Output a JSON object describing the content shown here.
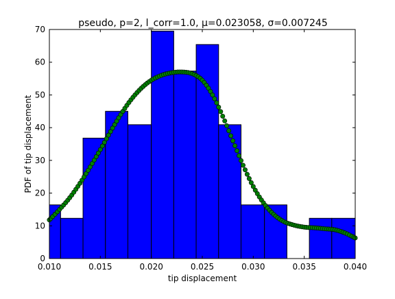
{
  "chart_data": {
    "type": "bar",
    "title": "pseudo, p=2, l_corr=1.0, μ=0.023058, σ=0.007245",
    "xlabel": "tip displacement",
    "ylabel": "PDF of tip displacement",
    "xlim": [
      0.01,
      0.04
    ],
    "ylim": [
      0,
      70
    ],
    "xticks": [
      "0.010",
      "0.015",
      "0.020",
      "0.025",
      "0.030",
      "0.035",
      "0.040"
    ],
    "yticks": [
      "0",
      "10",
      "20",
      "30",
      "40",
      "50",
      "60",
      "70"
    ],
    "histogram": {
      "name": "",
      "color": "#0000ff",
      "bins": [
        {
          "x0": 0.01,
          "x1": 0.0111,
          "value": 16.4
        },
        {
          "x0": 0.0111,
          "x1": 0.0133,
          "value": 12.3
        },
        {
          "x0": 0.0133,
          "x1": 0.0155,
          "value": 36.8
        },
        {
          "x0": 0.0155,
          "x1": 0.0177,
          "value": 45.0
        },
        {
          "x0": 0.0177,
          "x1": 0.02,
          "value": 40.9
        },
        {
          "x0": 0.02,
          "x1": 0.0222,
          "value": 69.5
        },
        {
          "x0": 0.0222,
          "x1": 0.0244,
          "value": 57.3
        },
        {
          "x0": 0.0244,
          "x1": 0.0266,
          "value": 65.4
        },
        {
          "x0": 0.0266,
          "x1": 0.0288,
          "value": 40.9
        },
        {
          "x0": 0.0288,
          "x1": 0.0311,
          "value": 16.4
        },
        {
          "x0": 0.0311,
          "x1": 0.0333,
          "value": 16.4
        },
        {
          "x0": 0.0333,
          "x1": 0.0355,
          "value": 0
        },
        {
          "x0": 0.0355,
          "x1": 0.0377,
          "value": 12.3
        },
        {
          "x0": 0.0377,
          "x1": 0.04,
          "value": 12.3
        }
      ]
    },
    "curve": {
      "name": "",
      "color": "#008000",
      "marker": "circle",
      "points": [
        [
          0.01,
          11.8
        ],
        [
          0.011,
          15.0
        ],
        [
          0.012,
          18.6
        ],
        [
          0.013,
          23.0
        ],
        [
          0.014,
          28.0
        ],
        [
          0.015,
          33.3
        ],
        [
          0.016,
          38.8
        ],
        [
          0.017,
          44.0
        ],
        [
          0.018,
          48.5
        ],
        [
          0.019,
          52.0
        ],
        [
          0.02,
          54.5
        ],
        [
          0.021,
          56.0
        ],
        [
          0.022,
          56.8
        ],
        [
          0.023,
          57.0
        ],
        [
          0.024,
          56.5
        ],
        [
          0.025,
          54.5
        ],
        [
          0.026,
          50.0
        ],
        [
          0.027,
          43.5
        ],
        [
          0.028,
          36.0
        ],
        [
          0.029,
          28.5
        ],
        [
          0.03,
          22.0
        ],
        [
          0.031,
          17.0
        ],
        [
          0.032,
          13.5
        ],
        [
          0.033,
          11.3
        ],
        [
          0.034,
          10.2
        ],
        [
          0.035,
          9.6
        ],
        [
          0.036,
          9.4
        ],
        [
          0.037,
          9.1
        ],
        [
          0.038,
          8.8
        ],
        [
          0.039,
          7.8
        ],
        [
          0.04,
          6.3
        ]
      ]
    }
  }
}
